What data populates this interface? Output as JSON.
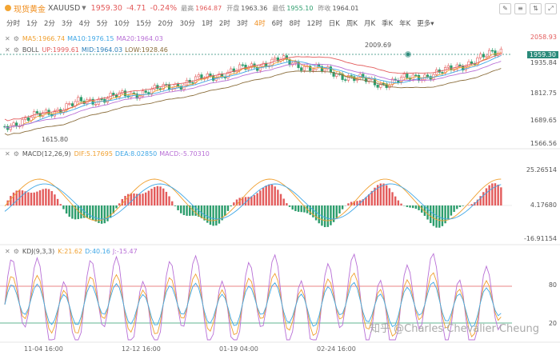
{
  "header": {
    "name": "现货黄金",
    "symbol": "XAUUSD",
    "price": "1959.30",
    "change": "-4.71",
    "change_pct": "-0.24%",
    "high_label": "最高",
    "high": "1964.87",
    "open_label": "开盘",
    "open": "1963.36",
    "low_label": "最低",
    "low": "1955.10",
    "prev_label": "昨收",
    "prev": "1964.01"
  },
  "periods": [
    "分时",
    "1分",
    "2分",
    "3分",
    "4分",
    "5分",
    "10分",
    "15分",
    "20分",
    "30分",
    "1时",
    "2时",
    "3时",
    "4时",
    "6时",
    "8时",
    "12时",
    "日K",
    "周K",
    "月K",
    "季K",
    "年K",
    "更多"
  ],
  "active_period": "4时",
  "legend": {
    "ma": {
      "ma5": "MA5:1966.74",
      "ma10": "MA10:1976.15",
      "ma20": "MA20:1964.03"
    },
    "boll": {
      "name": "BOLL",
      "up": "UP:1999.61",
      "mid": "MID:1964.03",
      "low": "LOW:1928.46"
    },
    "macd": {
      "name": "MACD(12,26,9)",
      "dif": "DIF:5.17695",
      "dea": "DEA:8.02850",
      "macd": "MACD:-5.70310"
    },
    "kdj": {
      "name": "KDJ(9,3,3)",
      "k": "K:21.62",
      "d": "D:40.16",
      "j": "J:-15.47"
    }
  },
  "price_axis": [
    "2058.93",
    "1959.30",
    "1935.84",
    "1812.75",
    "1689.65",
    "1566.56"
  ],
  "macd_axis": [
    "25.26514",
    "4.17680",
    "-16.91154"
  ],
  "kdj_axis": [
    "80",
    "20"
  ],
  "annotations": {
    "high": "2009.69",
    "low": "1615.80"
  },
  "x_labels": [
    "11-04 16:00",
    "12-12 16:00",
    "01-19 04:00",
    "02-24 16:00"
  ],
  "watermark": "知乎 @Charles·Chevalier·Cheung",
  "colors": {
    "up": "#e35b5b",
    "down": "#2c9d6c",
    "ma5": "#f0a030",
    "ma10": "#3fa7e6",
    "ma20": "#b86fd6",
    "accent": "#f08c1a"
  }
}
